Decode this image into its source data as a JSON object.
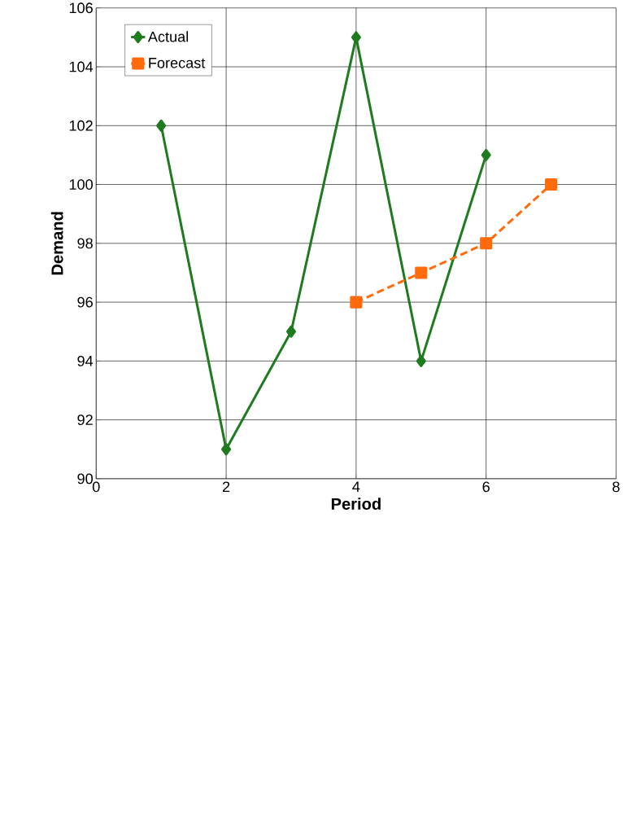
{
  "chart_data": {
    "type": "line",
    "xlabel": "Period",
    "ylabel": "Demand",
    "xlim": [
      0,
      8
    ],
    "xticks": [
      0,
      2,
      4,
      6,
      8
    ],
    "ylim": [
      90,
      106
    ],
    "yticks": [
      90,
      92,
      94,
      96,
      98,
      100,
      102,
      104,
      106
    ],
    "grid": true,
    "legend": "top left",
    "series": [
      {
        "name": "Actual",
        "color": "#1e7b1e",
        "marker": "diamond",
        "line_style": "solid",
        "x": [
          1,
          2,
          3,
          4,
          5,
          6
        ],
        "values": [
          102,
          91,
          95,
          105,
          94,
          101
        ]
      },
      {
        "name": "Forecast",
        "color": "#ff6a0a",
        "marker": "square",
        "line_style": "dashed",
        "x": [
          4,
          5,
          6,
          7
        ],
        "values": [
          96,
          97,
          98,
          100
        ]
      }
    ]
  }
}
